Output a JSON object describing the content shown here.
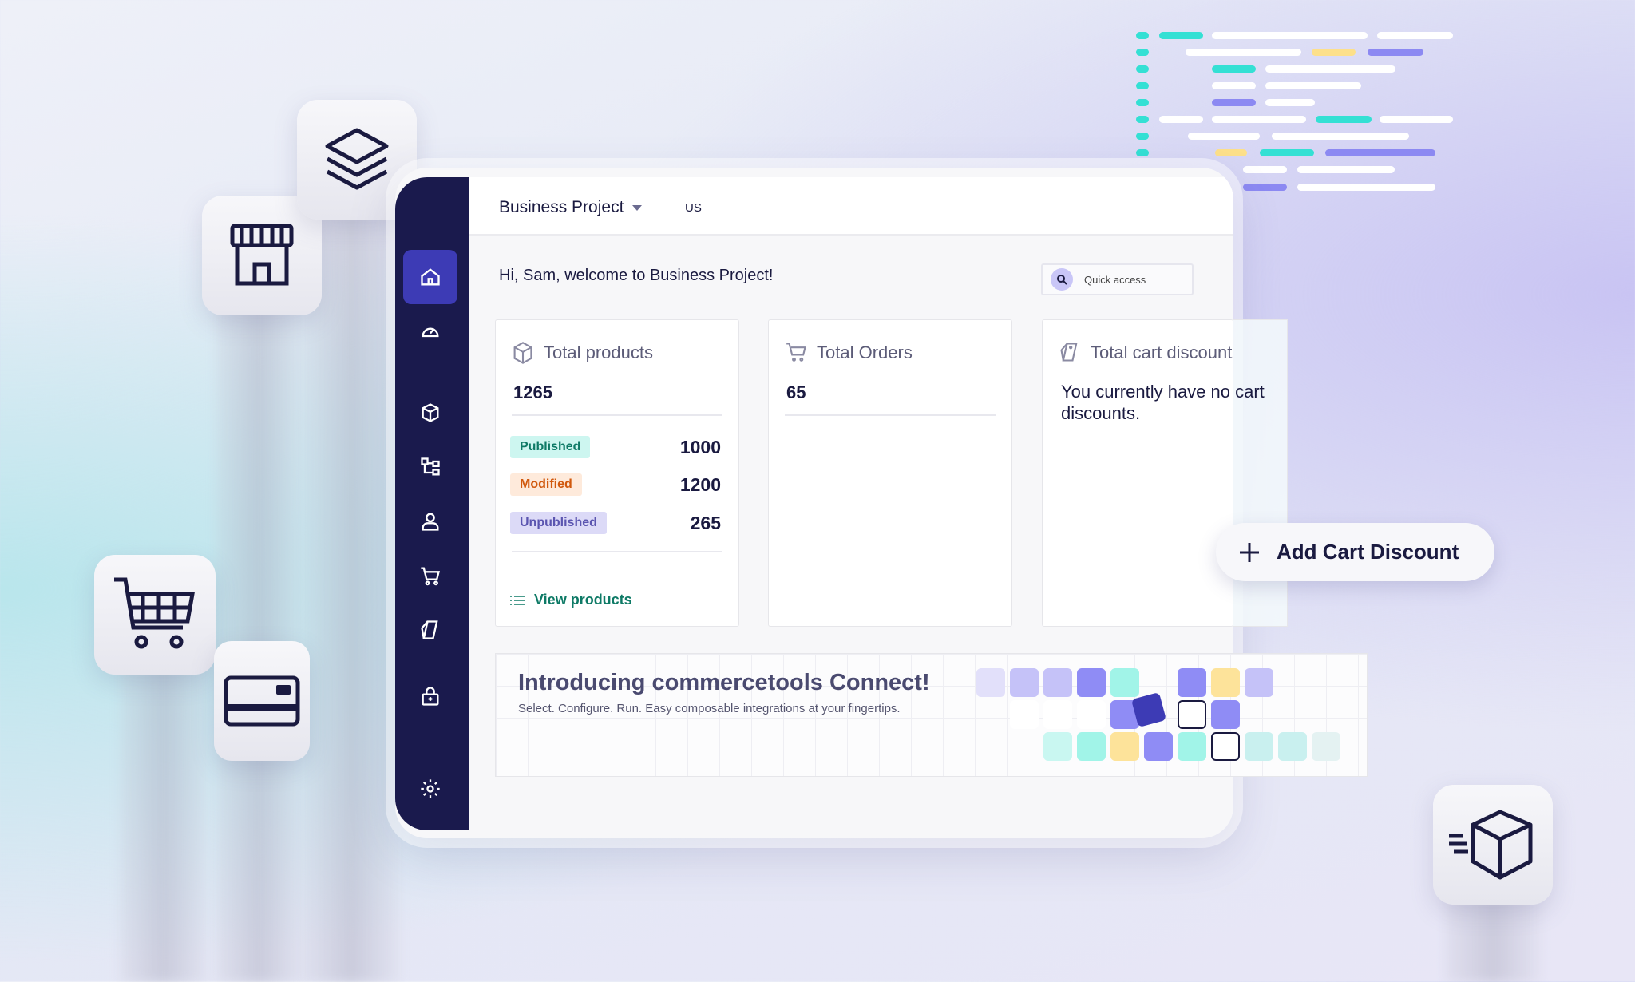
{
  "header": {
    "project": "Business Project",
    "locale": "US"
  },
  "welcome": "Hi, Sam, welcome to Business Project!",
  "quick_access": {
    "placeholder": "Quick access"
  },
  "sidebar": {
    "items": [
      {
        "icon": "home-icon",
        "active": true
      },
      {
        "icon": "dashboard-gauge-icon"
      },
      {
        "icon": "product-cube-icon"
      },
      {
        "icon": "categories-tree-icon"
      },
      {
        "icon": "customer-user-icon"
      },
      {
        "icon": "orders-cart-icon"
      },
      {
        "icon": "discount-tag-icon"
      },
      {
        "icon": "connect-lock-icon"
      },
      {
        "icon": "settings-gear-icon"
      }
    ]
  },
  "cards": {
    "products": {
      "title": "Total products",
      "value": "1265",
      "rows": [
        {
          "label": "Published",
          "value": "1000",
          "bg": "#cdf6f0",
          "fg": "#0e7a66"
        },
        {
          "label": "Modified",
          "value": "1200",
          "bg": "#feeadb",
          "fg": "#d1590e"
        },
        {
          "label": "Unpublished",
          "value": "265",
          "bg": "#dcdaf7",
          "fg": "#5b55b0"
        }
      ],
      "link": "View products"
    },
    "orders": {
      "title": "Total Orders",
      "value": "65"
    },
    "discounts": {
      "title": "Total cart discounts",
      "message": "You currently have no cart discounts."
    }
  },
  "add_discount": "Add Cart Discount",
  "banner": {
    "title": "Introducing commercetools Connect!",
    "subtitle": "Select. Configure. Run. Easy composable integrations at your fingertips."
  },
  "colors": {
    "navy": "#1a1a4d",
    "accent": "#3d3bb5",
    "teal": "#0e7a66"
  }
}
